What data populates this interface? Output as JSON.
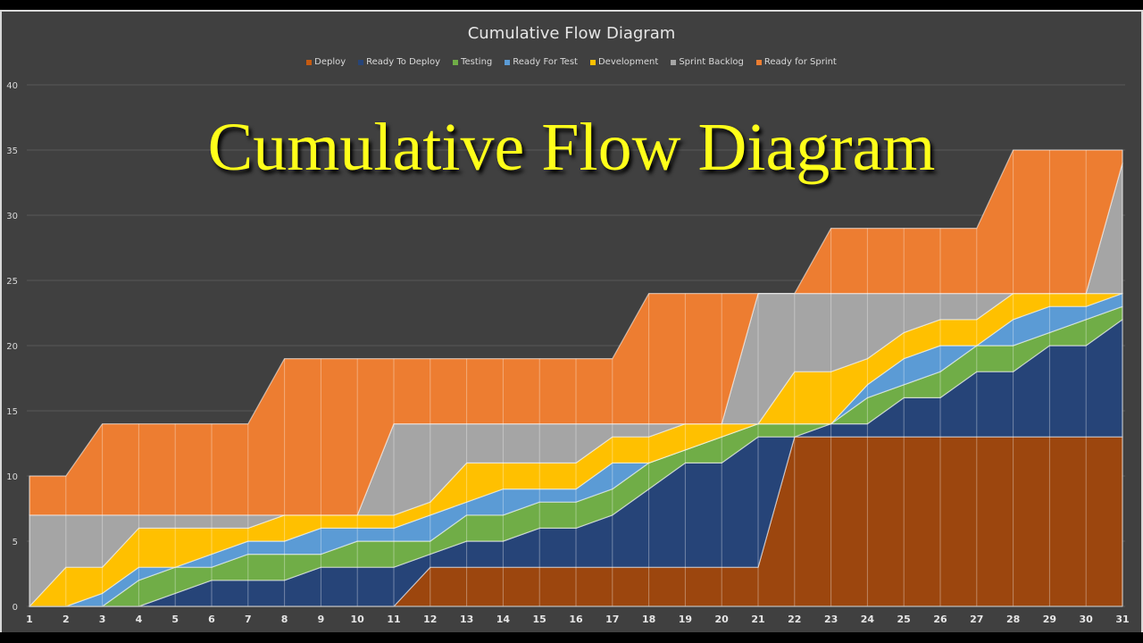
{
  "chart_title": "Cumulative Flow Diagram",
  "overlay_title": "Cumulative Flow Diagram",
  "colors": {
    "background": "#404040",
    "gridline": "#595959",
    "overlay_text": "#FFFF1A"
  },
  "chart_data": {
    "type": "area",
    "stacked": true,
    "title": "Cumulative Flow Diagram",
    "xlabel": "",
    "ylabel": "",
    "ylim": [
      0,
      40
    ],
    "yticks": [
      0,
      5,
      10,
      15,
      20,
      25,
      30,
      35,
      40
    ],
    "grid": true,
    "legend_position": "top",
    "categories": [
      1,
      2,
      3,
      4,
      5,
      6,
      7,
      8,
      9,
      10,
      11,
      12,
      13,
      14,
      15,
      16,
      17,
      18,
      19,
      20,
      21,
      22,
      23,
      24,
      25,
      26,
      27,
      28,
      29,
      30,
      31
    ],
    "series": [
      {
        "name": "Deploy",
        "color": "#9C460E",
        "values": [
          0,
          0,
          0,
          0,
          0,
          0,
          0,
          0,
          0,
          0,
          0,
          3,
          3,
          3,
          3,
          3,
          3,
          3,
          3,
          3,
          3,
          13,
          13,
          13,
          13,
          13,
          13,
          13,
          13,
          13,
          13
        ]
      },
      {
        "name": "Ready To Deploy",
        "color": "#264478",
        "values": [
          0,
          0,
          0,
          0,
          1,
          2,
          2,
          2,
          3,
          3,
          3,
          1,
          2,
          2,
          3,
          3,
          4,
          6,
          8,
          8,
          10,
          0,
          1,
          1,
          3,
          3,
          5,
          5,
          7,
          7,
          9
        ]
      },
      {
        "name": "Testing",
        "color": "#70AD47",
        "values": [
          0,
          0,
          0,
          2,
          2,
          1,
          2,
          2,
          1,
          2,
          2,
          1,
          2,
          2,
          2,
          2,
          2,
          2,
          1,
          2,
          1,
          1,
          0,
          2,
          1,
          2,
          2,
          2,
          1,
          2,
          1
        ]
      },
      {
        "name": "Ready For Test",
        "color": "#5B9BD5",
        "values": [
          0,
          0,
          1,
          1,
          0,
          1,
          1,
          1,
          2,
          1,
          1,
          2,
          1,
          2,
          1,
          1,
          2,
          0,
          0,
          0,
          0,
          0,
          0,
          1,
          2,
          2,
          0,
          2,
          2,
          1,
          1
        ]
      },
      {
        "name": "Development",
        "color": "#FFC000",
        "values": [
          0,
          3,
          2,
          3,
          3,
          2,
          1,
          2,
          1,
          1,
          1,
          1,
          3,
          2,
          2,
          2,
          2,
          2,
          2,
          1,
          0,
          4,
          4,
          2,
          2,
          2,
          2,
          2,
          1,
          1,
          0
        ]
      },
      {
        "name": "Sprint Backlog",
        "color": "#A5A5A5",
        "values": [
          7,
          4,
          4,
          1,
          1,
          1,
          1,
          0,
          0,
          0,
          7,
          6,
          3,
          3,
          3,
          3,
          1,
          1,
          0,
          0,
          10,
          6,
          6,
          5,
          3,
          2,
          2,
          0,
          0,
          0,
          10
        ]
      },
      {
        "name": "Ready for Sprint",
        "color": "#ED7D31",
        "values": [
          3,
          3,
          7,
          7,
          7,
          7,
          7,
          12,
          12,
          12,
          5,
          5,
          5,
          5,
          5,
          5,
          5,
          10,
          10,
          10,
          0,
          0,
          5,
          5,
          5,
          5,
          5,
          11,
          11,
          11,
          1
        ]
      }
    ]
  },
  "legend": [
    {
      "label": "Deploy",
      "color": "#C55A11"
    },
    {
      "label": "Ready To Deploy",
      "color": "#264478"
    },
    {
      "label": "Testing",
      "color": "#70AD47"
    },
    {
      "label": "Ready For Test",
      "color": "#5B9BD5"
    },
    {
      "label": "Development",
      "color": "#FFC000"
    },
    {
      "label": "Sprint Backlog",
      "color": "#A5A5A5"
    },
    {
      "label": "Ready for Sprint",
      "color": "#ED7D31"
    }
  ]
}
